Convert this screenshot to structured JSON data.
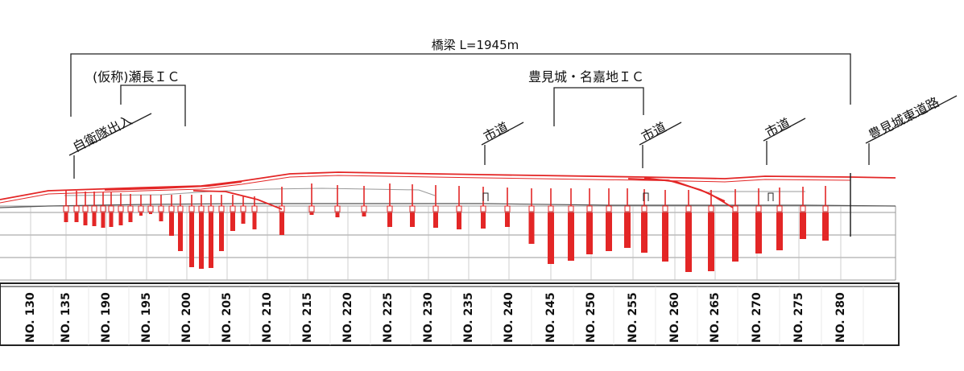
{
  "labels": {
    "bridge": "橋梁 L=1945m",
    "ic1": "(仮称)瀬長ＩＣ",
    "ic2": "豊見城・名嘉地ＩＣ",
    "jsdf": "自衛隊出入",
    "city_road_1": "市道",
    "city_road_2": "市道",
    "city_road_3": "市道",
    "east_road": "豊見城東道路"
  },
  "stations": [
    "NO. 130",
    "NO. 135",
    "NO. 190",
    "NO. 195",
    "NO. 200",
    "NO. 205",
    "NO. 210",
    "NO. 215",
    "NO. 220",
    "NO. 225",
    "NO. 230",
    "NO. 235",
    "NO. 240",
    "NO. 245",
    "NO. 250",
    "NO. 255",
    "NO. 260",
    "NO. 265",
    "NO. 270",
    "NO. 275",
    "NO. 280"
  ],
  "colors": {
    "structure": "#e32626",
    "grid": "#888888",
    "line": "#222222"
  }
}
